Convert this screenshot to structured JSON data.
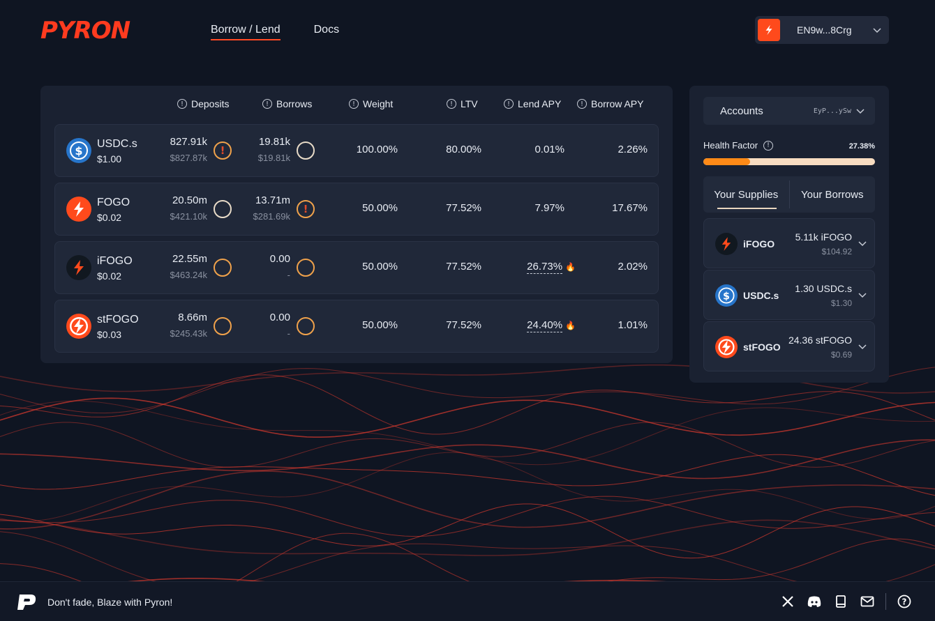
{
  "brand": {
    "logo_text": "PYRON"
  },
  "nav": {
    "items": [
      {
        "label": "Borrow / Lend",
        "active": true
      },
      {
        "label": "Docs",
        "active": false
      }
    ]
  },
  "wallet": {
    "address": "EN9w...8Crg"
  },
  "market": {
    "columns": {
      "deposits": "Deposits",
      "borrows": "Borrows",
      "weight": "Weight",
      "ltv": "LTV",
      "lend_apy": "Lend APY",
      "borrow_apy": "Borrow APY"
    },
    "rows": [
      {
        "name": "USDC.s",
        "price": "$1.00",
        "icon": "usdc-icon",
        "deposits": "827.91k",
        "deposits_usd": "$827.87k",
        "deposits_indicator": "warning",
        "borrows": "19.81k",
        "borrows_usd": "$19.81k",
        "borrows_indicator": "circle-white",
        "weight": "100.00%",
        "ltv": "80.00%",
        "lend_apy": "0.01%",
        "lend_flame": false,
        "borrow_apy": "2.26%"
      },
      {
        "name": "FOGO",
        "price": "$0.02",
        "icon": "fogo-icon",
        "deposits": "20.50m",
        "deposits_usd": "$421.10k",
        "deposits_indicator": "circle-white",
        "borrows": "13.71m",
        "borrows_usd": "$281.69k",
        "borrows_indicator": "warning",
        "weight": "50.00%",
        "ltv": "77.52%",
        "lend_apy": "7.97%",
        "lend_flame": false,
        "borrow_apy": "17.67%"
      },
      {
        "name": "iFOGO",
        "price": "$0.02",
        "icon": "ifogo-icon",
        "deposits": "22.55m",
        "deposits_usd": "$463.24k",
        "deposits_indicator": "circle",
        "borrows": "0.00",
        "borrows_usd": "-",
        "borrows_indicator": "circle",
        "weight": "50.00%",
        "ltv": "77.52%",
        "lend_apy": "26.73%",
        "lend_flame": true,
        "borrow_apy": "2.02%"
      },
      {
        "name": "stFOGO",
        "price": "$0.03",
        "icon": "stfogo-icon",
        "deposits": "8.66m",
        "deposits_usd": "$245.43k",
        "deposits_indicator": "circle",
        "borrows": "0.00",
        "borrows_usd": "-",
        "borrows_indicator": "circle",
        "weight": "50.00%",
        "ltv": "77.52%",
        "lend_apy": "24.40%",
        "lend_flame": true,
        "borrow_apy": "1.01%"
      }
    ]
  },
  "account": {
    "label": "Accounts",
    "address": "EyP...ySw",
    "health_factor_label": "Health Factor",
    "health_factor_value": "27.38%",
    "health_factor_fraction": 0.2738,
    "tabs": [
      "Your Supplies",
      "Your Borrows"
    ],
    "supplies": [
      {
        "name": "iFOGO",
        "icon": "ifogo-icon",
        "amount": "5.11k iFOGO",
        "usd": "$104.92"
      },
      {
        "name": "USDC.s",
        "icon": "usdc-icon",
        "amount": "1.30 USDC.s",
        "usd": "$1.30"
      },
      {
        "name": "stFOGO",
        "icon": "stfogo-icon",
        "amount": "24.36 stFOGO",
        "usd": "$0.69"
      }
    ]
  },
  "footer": {
    "tagline": "Don't fade, Blaze with Pyron!",
    "icons": [
      "x-icon",
      "discord-icon",
      "book-icon",
      "mail-icon",
      "help-icon"
    ]
  },
  "colors": {
    "accent": "#ff4a24",
    "orange": "#f0a24b",
    "bg": "#0f1522",
    "panel": "#1a2131"
  }
}
